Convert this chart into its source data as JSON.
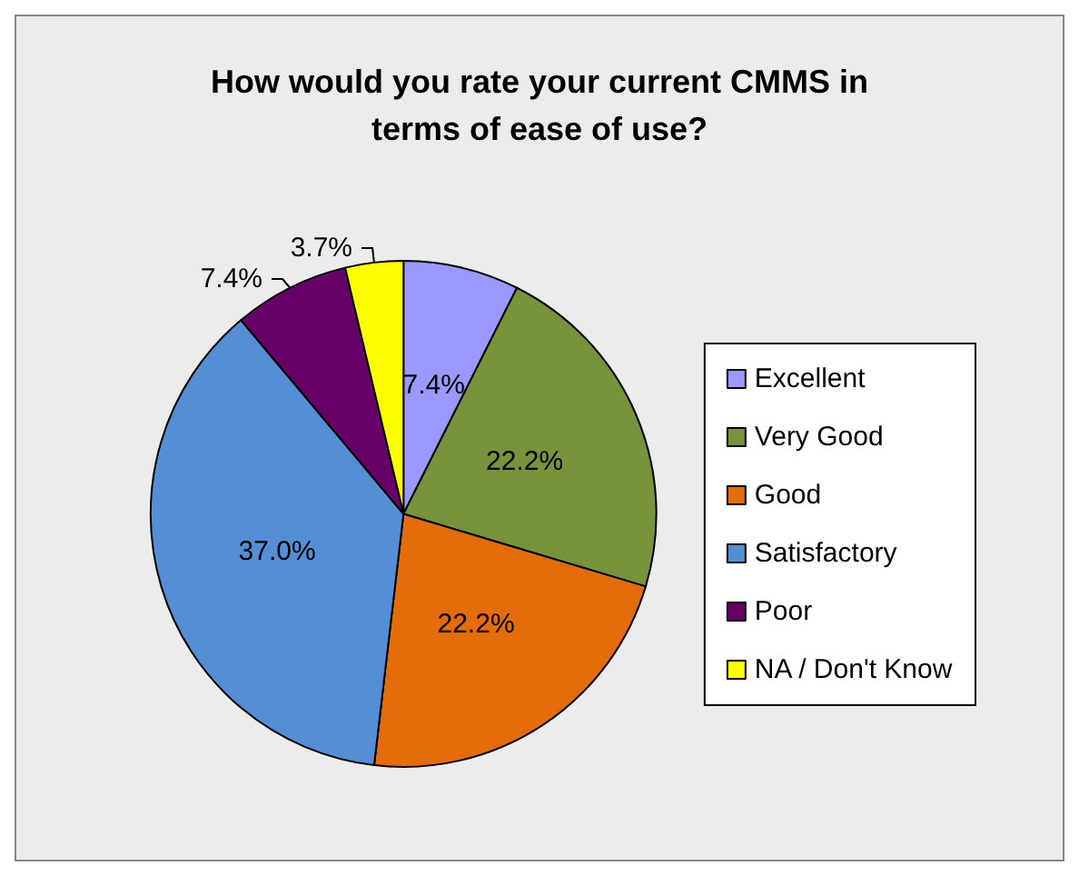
{
  "chart_data": {
    "type": "pie",
    "title": "How would you rate your current CMMS in\nterms of ease of use?",
    "categories": [
      "Excellent",
      "Very Good",
      "Good",
      "Satisfactory",
      "Poor",
      "NA / Don't Know"
    ],
    "values": [
      7.4,
      22.2,
      22.2,
      37.0,
      7.4,
      3.7
    ],
    "colors": [
      "#9999ff",
      "#77933c",
      "#e46c0a",
      "#558ed5",
      "#660066",
      "#ffff00"
    ],
    "value_labels": [
      "7.4%",
      "22.2%",
      "22.2%",
      "37.0%",
      "7.4%",
      "3.7%"
    ],
    "legend": "right"
  }
}
